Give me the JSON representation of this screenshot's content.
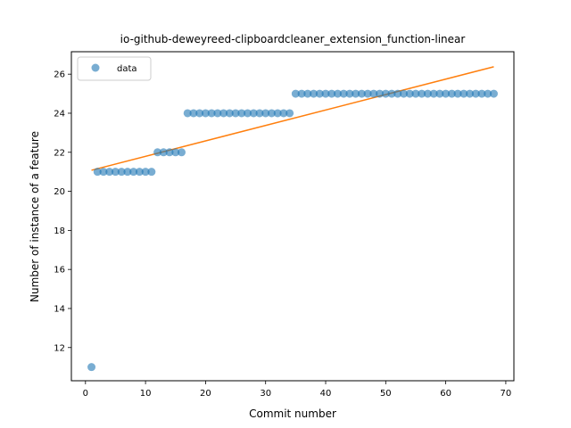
{
  "chart_data": {
    "type": "scatter",
    "title": "io-github-deweyreed-clipboardcleaner_extension_function-linear",
    "xlabel": "Commit number",
    "ylabel": "Number of instance of a feature",
    "xlim": [
      -2.35,
      71.35
    ],
    "ylim": [
      10.3,
      27.15
    ],
    "xticks": [
      0,
      10,
      20,
      30,
      40,
      50,
      60,
      70
    ],
    "yticks": [
      12,
      14,
      16,
      18,
      20,
      22,
      24,
      26
    ],
    "grid": false,
    "legend": {
      "position": "top-left",
      "entries": [
        "data"
      ]
    },
    "colors": {
      "data": "#1f77b4",
      "fit": "#ff7f0e"
    },
    "series": [
      {
        "name": "data",
        "kind": "scatter",
        "x": [
          1,
          2,
          3,
          4,
          5,
          6,
          7,
          8,
          9,
          10,
          11,
          12,
          13,
          14,
          15,
          16,
          17,
          18,
          19,
          20,
          21,
          22,
          23,
          24,
          25,
          26,
          27,
          28,
          29,
          30,
          31,
          32,
          33,
          34,
          35,
          36,
          37,
          38,
          39,
          40,
          41,
          42,
          43,
          44,
          45,
          46,
          47,
          48,
          49,
          50,
          51,
          52,
          53,
          54,
          55,
          56,
          57,
          58,
          59,
          60,
          61,
          62,
          63,
          64,
          65,
          66,
          67,
          68
        ],
        "y": [
          11,
          21,
          21,
          21,
          21,
          21,
          21,
          21,
          21,
          21,
          21,
          22,
          22,
          22,
          22,
          22,
          24,
          24,
          24,
          24,
          24,
          24,
          24,
          24,
          24,
          24,
          24,
          24,
          24,
          24,
          24,
          24,
          24,
          24,
          25,
          25,
          25,
          25,
          25,
          25,
          25,
          25,
          25,
          25,
          25,
          25,
          25,
          25,
          25,
          25,
          25,
          25,
          25,
          25,
          25,
          25,
          25,
          25,
          25,
          25,
          25,
          25,
          25,
          25,
          25,
          25,
          25,
          25
        ]
      },
      {
        "kind": "line",
        "x": [
          1,
          68
        ],
        "y": [
          21.08,
          26.38
        ]
      }
    ]
  }
}
